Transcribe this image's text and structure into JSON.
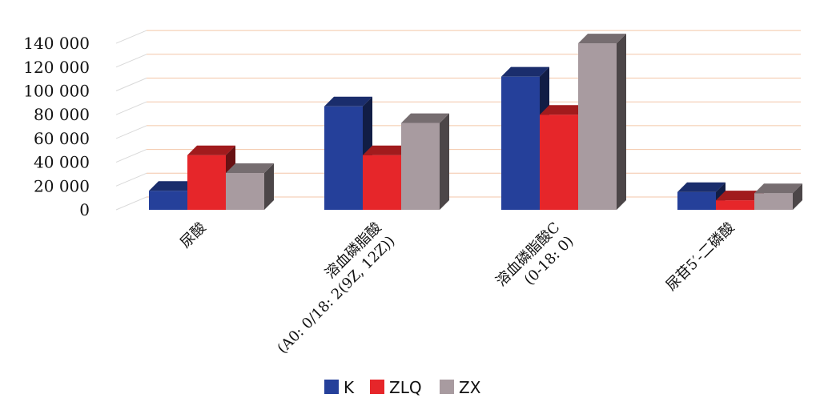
{
  "chart_data": {
    "type": "bar",
    "categories": [
      [
        "尿酸"
      ],
      [
        "溶血磷脂酸",
        "(A0: 0/18: 2(9Z, 12Z))"
      ],
      [
        "溶血磷脂酸C",
        "(0-18: 0)"
      ],
      [
        "尿苷5′-二磷酸"
      ]
    ],
    "series": [
      {
        "name": "K",
        "values": [
          16000,
          87000,
          112000,
          15000
        ],
        "color": "#25409a"
      },
      {
        "name": "ZLQ",
        "values": [
          46000,
          46000,
          80000,
          8000
        ],
        "color": "#e6262a"
      },
      {
        "name": "ZX",
        "values": [
          31000,
          73000,
          140000,
          14000
        ],
        "color": "#a89ba0"
      }
    ],
    "ylim": [
      0,
      140000
    ],
    "yticks": [
      "0",
      "20 000",
      "40 000",
      "60 000",
      "80 000",
      "100 000",
      "120 000",
      "140 000"
    ],
    "grid": true,
    "legend_position": "bottom",
    "style": "3d-clustered-bar"
  }
}
